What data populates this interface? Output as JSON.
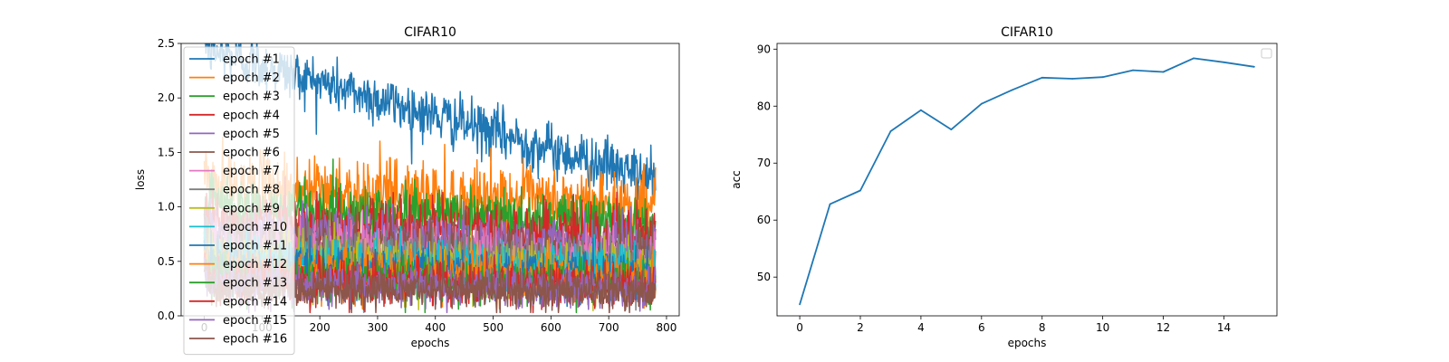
{
  "palette": [
    "#1f77b4",
    "#ff7f0e",
    "#2ca02c",
    "#d62728",
    "#9467bd",
    "#8c564b",
    "#e377c2",
    "#7f7f7f",
    "#bcbd22",
    "#17becf"
  ],
  "chart_data": [
    {
      "type": "line",
      "title": "CIFAR10",
      "xlabel": "epochs",
      "ylabel": "loss",
      "xlim": [
        -40,
        822
      ],
      "ylim": [
        0.0,
        2.5
      ],
      "xticks": [
        0,
        100,
        200,
        300,
        400,
        500,
        600,
        700,
        800
      ],
      "yticks": [
        0.0,
        0.5,
        1.0,
        1.5,
        2.0,
        2.5
      ],
      "grid": false,
      "legend": "upper-left",
      "points_per_series": 782,
      "series": [
        {
          "name": "epoch #1",
          "start": 2.45,
          "end": 1.25,
          "noise": 0.12
        },
        {
          "name": "epoch #2",
          "start": 1.2,
          "end": 1.0,
          "noise": 0.16
        },
        {
          "name": "epoch #3",
          "start": 1.0,
          "end": 0.85,
          "noise": 0.14
        },
        {
          "name": "epoch #4",
          "start": 0.85,
          "end": 0.72,
          "noise": 0.14
        },
        {
          "name": "epoch #5",
          "start": 0.75,
          "end": 0.62,
          "noise": 0.13
        },
        {
          "name": "epoch #6",
          "start": 0.68,
          "end": 0.55,
          "noise": 0.13
        },
        {
          "name": "epoch #7",
          "start": 0.62,
          "end": 0.5,
          "noise": 0.13
        },
        {
          "name": "epoch #8",
          "start": 0.57,
          "end": 0.46,
          "noise": 0.12
        },
        {
          "name": "epoch #9",
          "start": 0.53,
          "end": 0.42,
          "noise": 0.12
        },
        {
          "name": "epoch #10",
          "start": 0.5,
          "end": 0.4,
          "noise": 0.12
        },
        {
          "name": "epoch #11",
          "start": 0.46,
          "end": 0.36,
          "noise": 0.11
        },
        {
          "name": "epoch #12",
          "start": 0.42,
          "end": 0.33,
          "noise": 0.11
        },
        {
          "name": "epoch #13",
          "start": 0.38,
          "end": 0.3,
          "noise": 0.1
        },
        {
          "name": "epoch #14",
          "start": 0.34,
          "end": 0.27,
          "noise": 0.1
        },
        {
          "name": "epoch #15",
          "start": 0.3,
          "end": 0.24,
          "noise": 0.09
        },
        {
          "name": "epoch #16",
          "start": 0.27,
          "end": 0.22,
          "noise": 0.09
        }
      ]
    },
    {
      "type": "line",
      "title": "CIFAR10",
      "xlabel": "epochs",
      "ylabel": "acc",
      "xlim": [
        -0.75,
        15.75
      ],
      "ylim": [
        43.2,
        91.0
      ],
      "xticks": [
        0,
        2,
        4,
        6,
        8,
        10,
        12,
        14
      ],
      "yticks": [
        50,
        60,
        70,
        80,
        90
      ],
      "grid": false,
      "legend": "upper-right (empty)",
      "color": "#1f77b4",
      "x": [
        0,
        1,
        2,
        3,
        4,
        5,
        6,
        7,
        8,
        9,
        10,
        11,
        12,
        13,
        14,
        15
      ],
      "y": [
        45.2,
        62.8,
        65.2,
        75.6,
        79.3,
        75.9,
        80.4,
        82.8,
        85.0,
        84.8,
        85.1,
        86.3,
        86.0,
        88.4,
        87.7,
        86.9
      ]
    }
  ]
}
